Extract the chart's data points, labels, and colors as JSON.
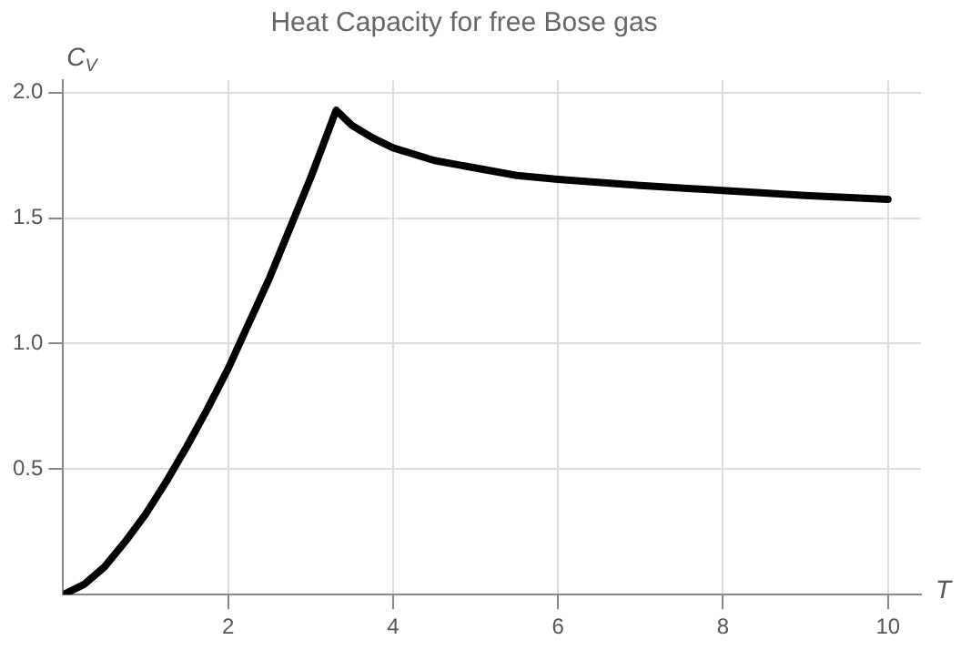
{
  "chart_data": {
    "type": "line",
    "title": "Heat Capacity for free Bose gas",
    "xlabel": "T",
    "ylabel": "C$_{V}$",
    "x": [
      0,
      0.25,
      0.5,
      0.75,
      1,
      1.25,
      1.5,
      1.75,
      2,
      2.25,
      2.5,
      2.75,
      3,
      3.15,
      3.31,
      3.5,
      3.75,
      4,
      4.5,
      5,
      5.5,
      6,
      7,
      8,
      9,
      10
    ],
    "series": [
      {
        "color": "#000000",
        "values": [
          0,
          0.04,
          0.11,
          0.21,
          0.32,
          0.45,
          0.59,
          0.74,
          0.9,
          1.08,
          1.26,
          1.46,
          1.66,
          1.79,
          1.93,
          1.87,
          1.82,
          1.78,
          1.73,
          1.7,
          1.67,
          1.655,
          1.63,
          1.61,
          1.59,
          1.575
        ]
      }
    ],
    "xlim": [
      0,
      10.4
    ],
    "ylim": [
      0,
      2.05
    ],
    "xticks": [
      2,
      4,
      6,
      8,
      10
    ],
    "yticks": [
      {
        "value": 0.5,
        "label": "0.5"
      },
      {
        "value": 1,
        "label": "1.0"
      },
      {
        "value": 1.5,
        "label": "1.5"
      },
      {
        "value": 2,
        "label": "2.0"
      }
    ],
    "grid": true,
    "marker": "none",
    "line_style": "solid",
    "legend": false
  }
}
